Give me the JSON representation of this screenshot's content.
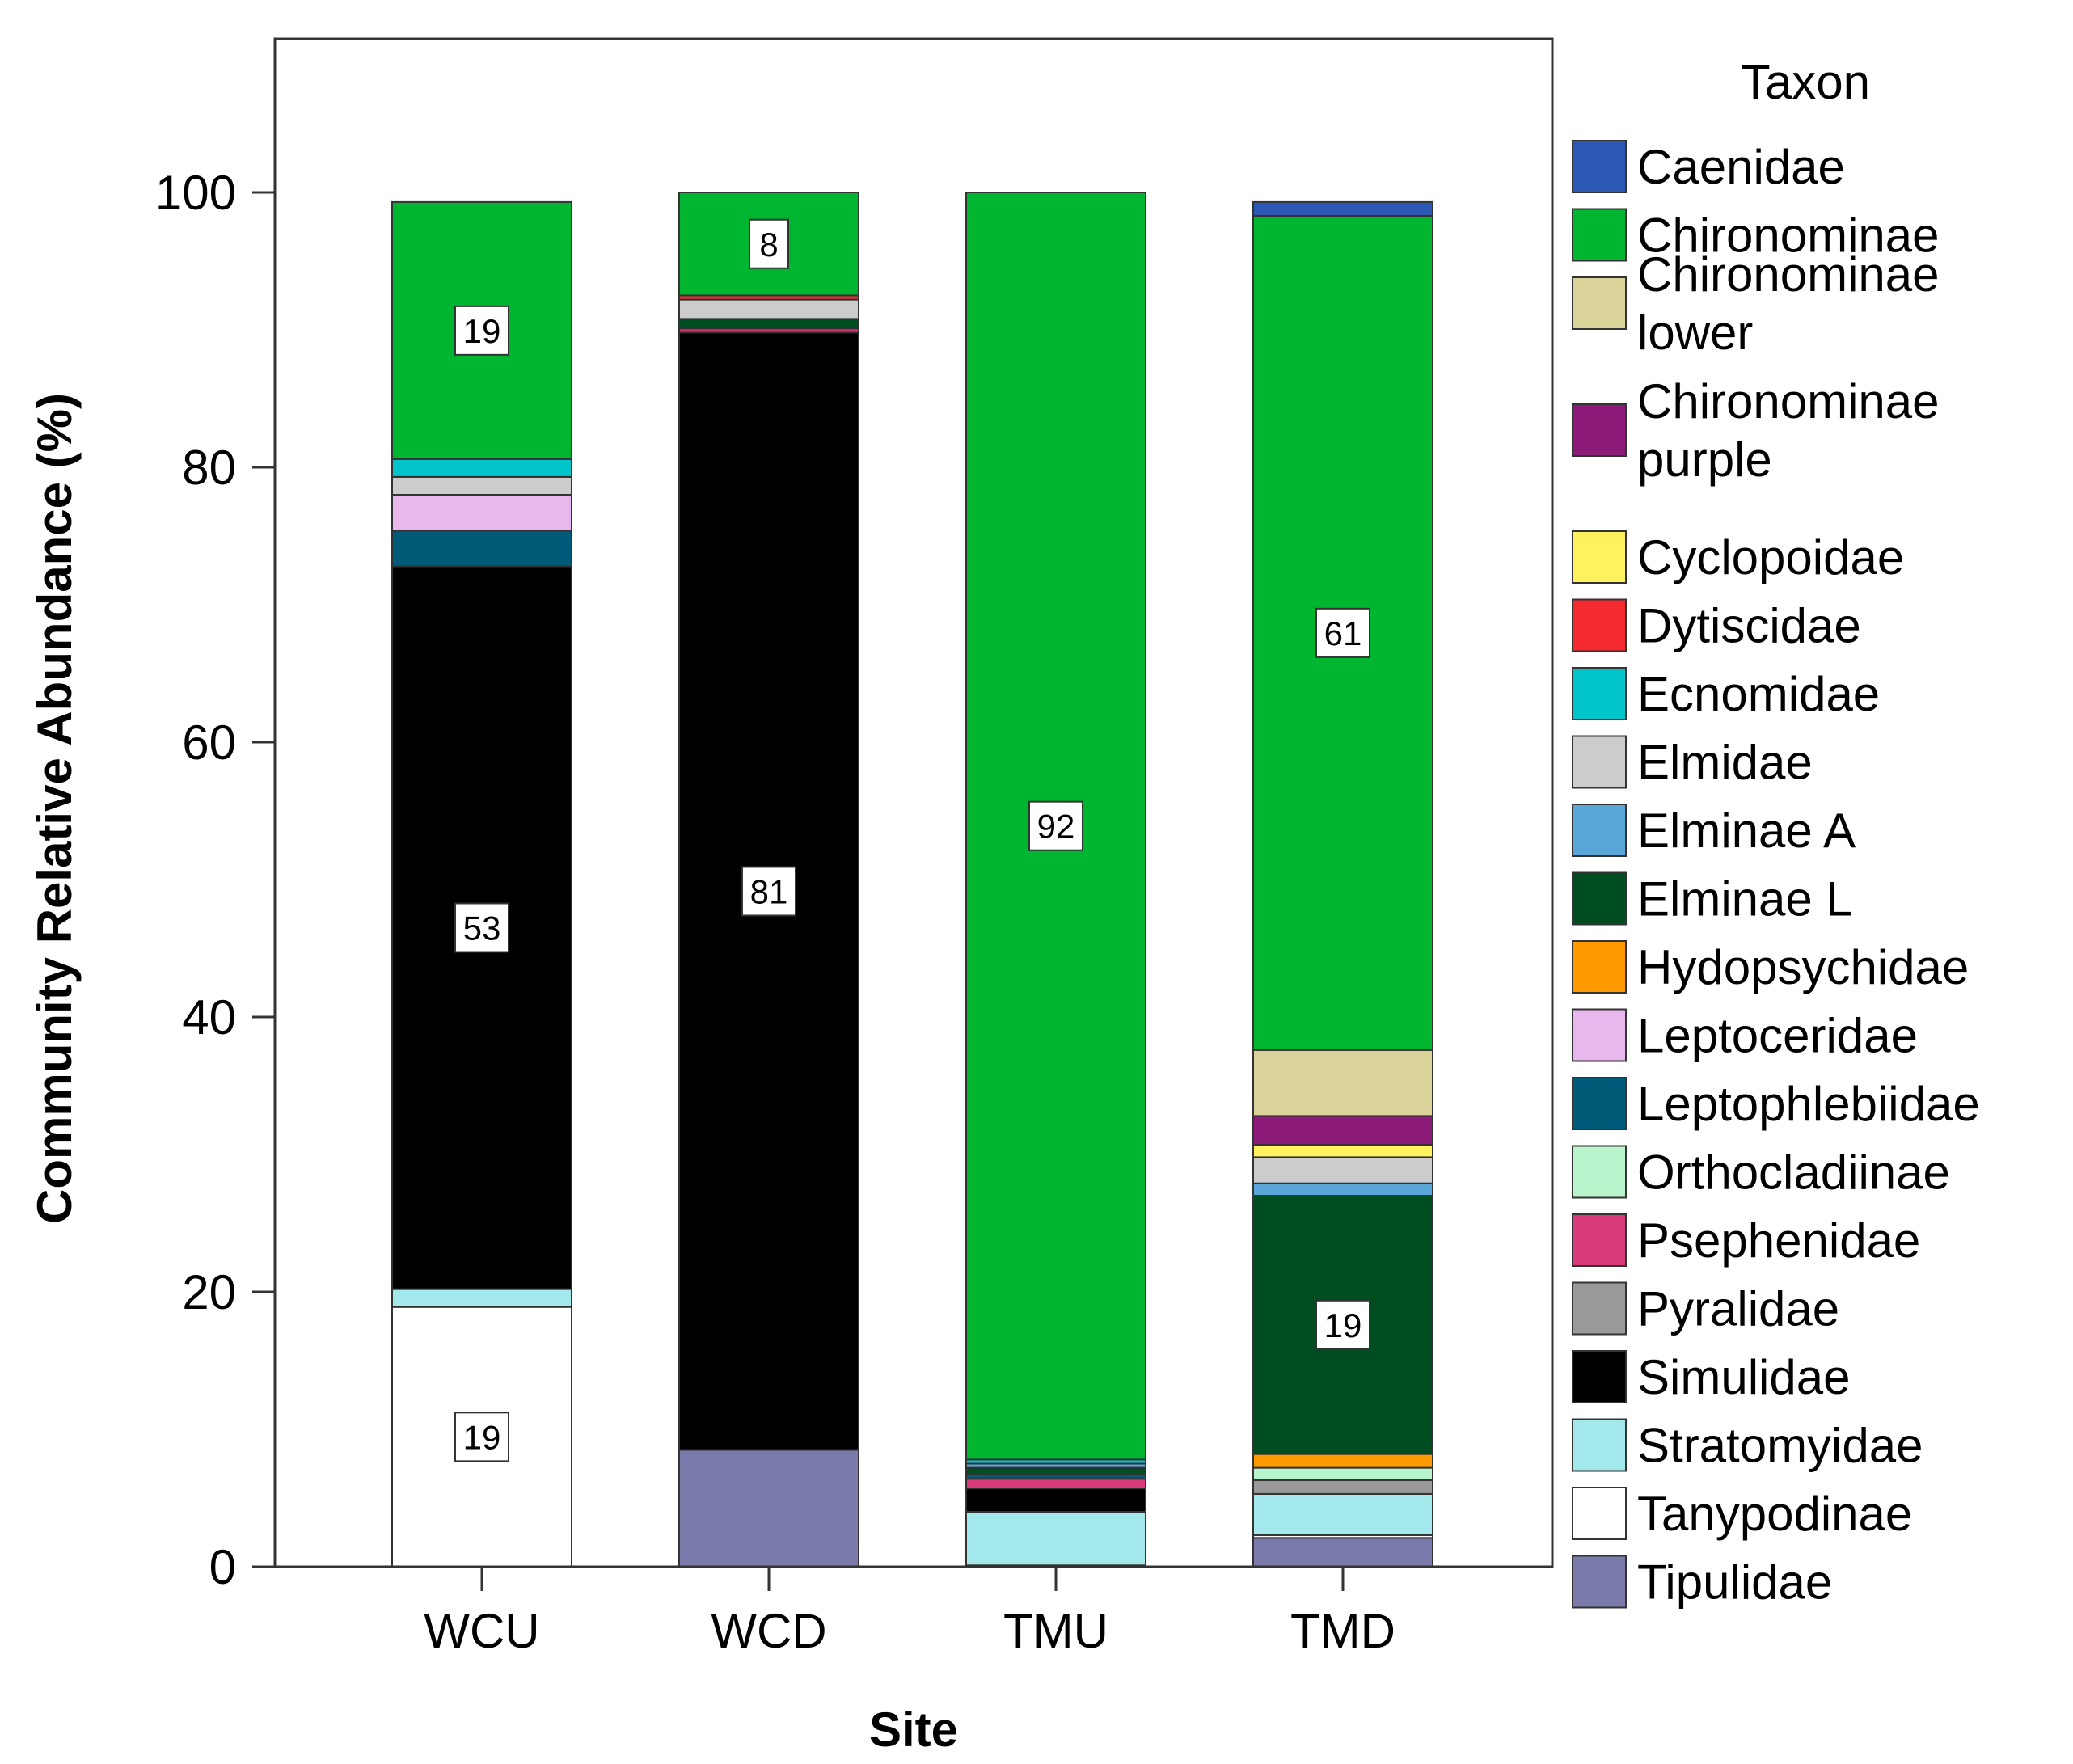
{
  "chart_data": {
    "type": "bar",
    "stacked": true,
    "title": "",
    "xlabel": "Site",
    "ylabel": "Community Relative Abundance (%)",
    "ylim": [
      0,
      112
    ],
    "yticks": [
      0,
      20,
      40,
      60,
      80,
      100
    ],
    "categories": [
      "WCU",
      "WCD",
      "TMU",
      "TMD"
    ],
    "legend_title": "Taxon",
    "legend_position": "right",
    "taxa": [
      {
        "name": "Caenidae",
        "lines": [
          "Caenidae"
        ],
        "color": "#2b57b5"
      },
      {
        "name": "Chironominae",
        "lines": [
          "Chironominae"
        ],
        "color": "#00b52f"
      },
      {
        "name": "Chironominae lower",
        "lines": [
          "Chironominae",
          "lower"
        ],
        "color": "#d9d39a"
      },
      {
        "name": "Chironominae purple",
        "lines": [
          "Chironominae",
          "purple"
        ],
        "color": "#8b1a78"
      },
      {
        "name": "Cyclopoidae",
        "lines": [
          "Cyclopoidae"
        ],
        "color": "#fff25e"
      },
      {
        "name": "Dytiscidae",
        "lines": [
          "Dytiscidae"
        ],
        "color": "#f52a2e"
      },
      {
        "name": "Ecnomidae",
        "lines": [
          "Ecnomidae"
        ],
        "color": "#00c4c9"
      },
      {
        "name": "Elmidae",
        "lines": [
          "Elmidae"
        ],
        "color": "#cccccc"
      },
      {
        "name": "Elminae A",
        "lines": [
          "Elminae A"
        ],
        "color": "#5aa6d9"
      },
      {
        "name": "Elminae L",
        "lines": [
          "Elminae L"
        ],
        "color": "#004d22"
      },
      {
        "name": "Hydopsychidae",
        "lines": [
          "Hydopsychidae"
        ],
        "color": "#ff9a00"
      },
      {
        "name": "Leptoceridae",
        "lines": [
          "Leptoceridae"
        ],
        "color": "#e8b7ee"
      },
      {
        "name": "Leptophlebiidae",
        "lines": [
          "Leptophlebiidae"
        ],
        "color": "#005a78"
      },
      {
        "name": "Orthocladiinae",
        "lines": [
          "Orthocladiinae"
        ],
        "color": "#b8f5cd"
      },
      {
        "name": "Psephenidae",
        "lines": [
          "Psephenidae"
        ],
        "color": "#d93a7a"
      },
      {
        "name": "Pyralidae",
        "lines": [
          "Pyralidae"
        ],
        "color": "#999999"
      },
      {
        "name": "Simulidae",
        "lines": [
          "Simulidae"
        ],
        "color": "#000000"
      },
      {
        "name": "Stratomyidae",
        "lines": [
          "Stratomyidae"
        ],
        "color": "#a3e8eb"
      },
      {
        "name": "Tanypodinae",
        "lines": [
          "Tanypodinae"
        ],
        "color": "#ffffff"
      },
      {
        "name": "Tipulidae",
        "lines": [
          "Tipulidae"
        ],
        "color": "#7b7bab"
      }
    ],
    "stack_order": [
      "Tipulidae",
      "Tanypodinae",
      "Stratomyidae",
      "Simulidae",
      "Pyralidae",
      "Psephenidae",
      "Orthocladiinae",
      "Leptophlebiidae",
      "Leptoceridae",
      "Hydopsychidae",
      "Elminae L",
      "Elminae A",
      "Elmidae",
      "Ecnomidae",
      "Dytiscidae",
      "Cyclopoidae",
      "Chironominae purple",
      "Chironominae lower",
      "Chironominae",
      "Caenidae"
    ],
    "series": [
      {
        "name": "Caenidae",
        "values": [
          0,
          0,
          0,
          1.0
        ]
      },
      {
        "name": "Chironominae",
        "values": [
          18.7,
          7.5,
          92.2,
          60.7
        ]
      },
      {
        "name": "Chironominae lower",
        "values": [
          0,
          0,
          0,
          4.8
        ]
      },
      {
        "name": "Chironominae purple",
        "values": [
          0,
          0,
          0,
          2.1
        ]
      },
      {
        "name": "Cyclopoidae",
        "values": [
          0,
          0,
          0,
          0.9
        ]
      },
      {
        "name": "Dytiscidae",
        "values": [
          0,
          0.3,
          0,
          0
        ]
      },
      {
        "name": "Ecnomidae",
        "values": [
          1.3,
          0,
          0.3,
          0
        ]
      },
      {
        "name": "Elmidae",
        "values": [
          1.3,
          1.4,
          0,
          1.9
        ]
      },
      {
        "name": "Elminae A",
        "values": [
          0,
          0,
          0.3,
          0.9
        ]
      },
      {
        "name": "Elminae L",
        "values": [
          0,
          0.7,
          0.5,
          18.8
        ]
      },
      {
        "name": "Hydopsychidae",
        "values": [
          0,
          0,
          0,
          1.0
        ]
      },
      {
        "name": "Leptoceridae",
        "values": [
          2.6,
          0,
          0,
          0
        ]
      },
      {
        "name": "Leptophlebiidae",
        "values": [
          2.6,
          0,
          0.3,
          0
        ]
      },
      {
        "name": "Orthocladiinae",
        "values": [
          0,
          0,
          0,
          0.9
        ]
      },
      {
        "name": "Psephenidae",
        "values": [
          0,
          0.3,
          0.7,
          0
        ]
      },
      {
        "name": "Pyralidae",
        "values": [
          0,
          0,
          0,
          1.0
        ]
      },
      {
        "name": "Simulidae",
        "values": [
          52.6,
          81.3,
          1.7,
          0
        ]
      },
      {
        "name": "Stratomyidae",
        "values": [
          1.3,
          0,
          3.9,
          3.0
        ]
      },
      {
        "name": "Tanypodinae",
        "values": [
          18.9,
          0,
          0,
          0.2
        ]
      },
      {
        "name": "Tipulidae",
        "values": [
          0,
          8.5,
          0.1,
          2.1
        ]
      }
    ],
    "data_labels": [
      {
        "category": "WCU",
        "taxon": "Chironominae",
        "text": "19"
      },
      {
        "category": "WCU",
        "taxon": "Simulidae",
        "text": "53"
      },
      {
        "category": "WCU",
        "taxon": "Tanypodinae",
        "text": "19"
      },
      {
        "category": "WCD",
        "taxon": "Chironominae",
        "text": "8"
      },
      {
        "category": "WCD",
        "taxon": "Simulidae",
        "text": "81"
      },
      {
        "category": "TMU",
        "taxon": "Chironominae",
        "text": "92"
      },
      {
        "category": "TMD",
        "taxon": "Chironominae",
        "text": "61"
      },
      {
        "category": "TMD",
        "taxon": "Elminae L",
        "text": "19"
      }
    ]
  }
}
